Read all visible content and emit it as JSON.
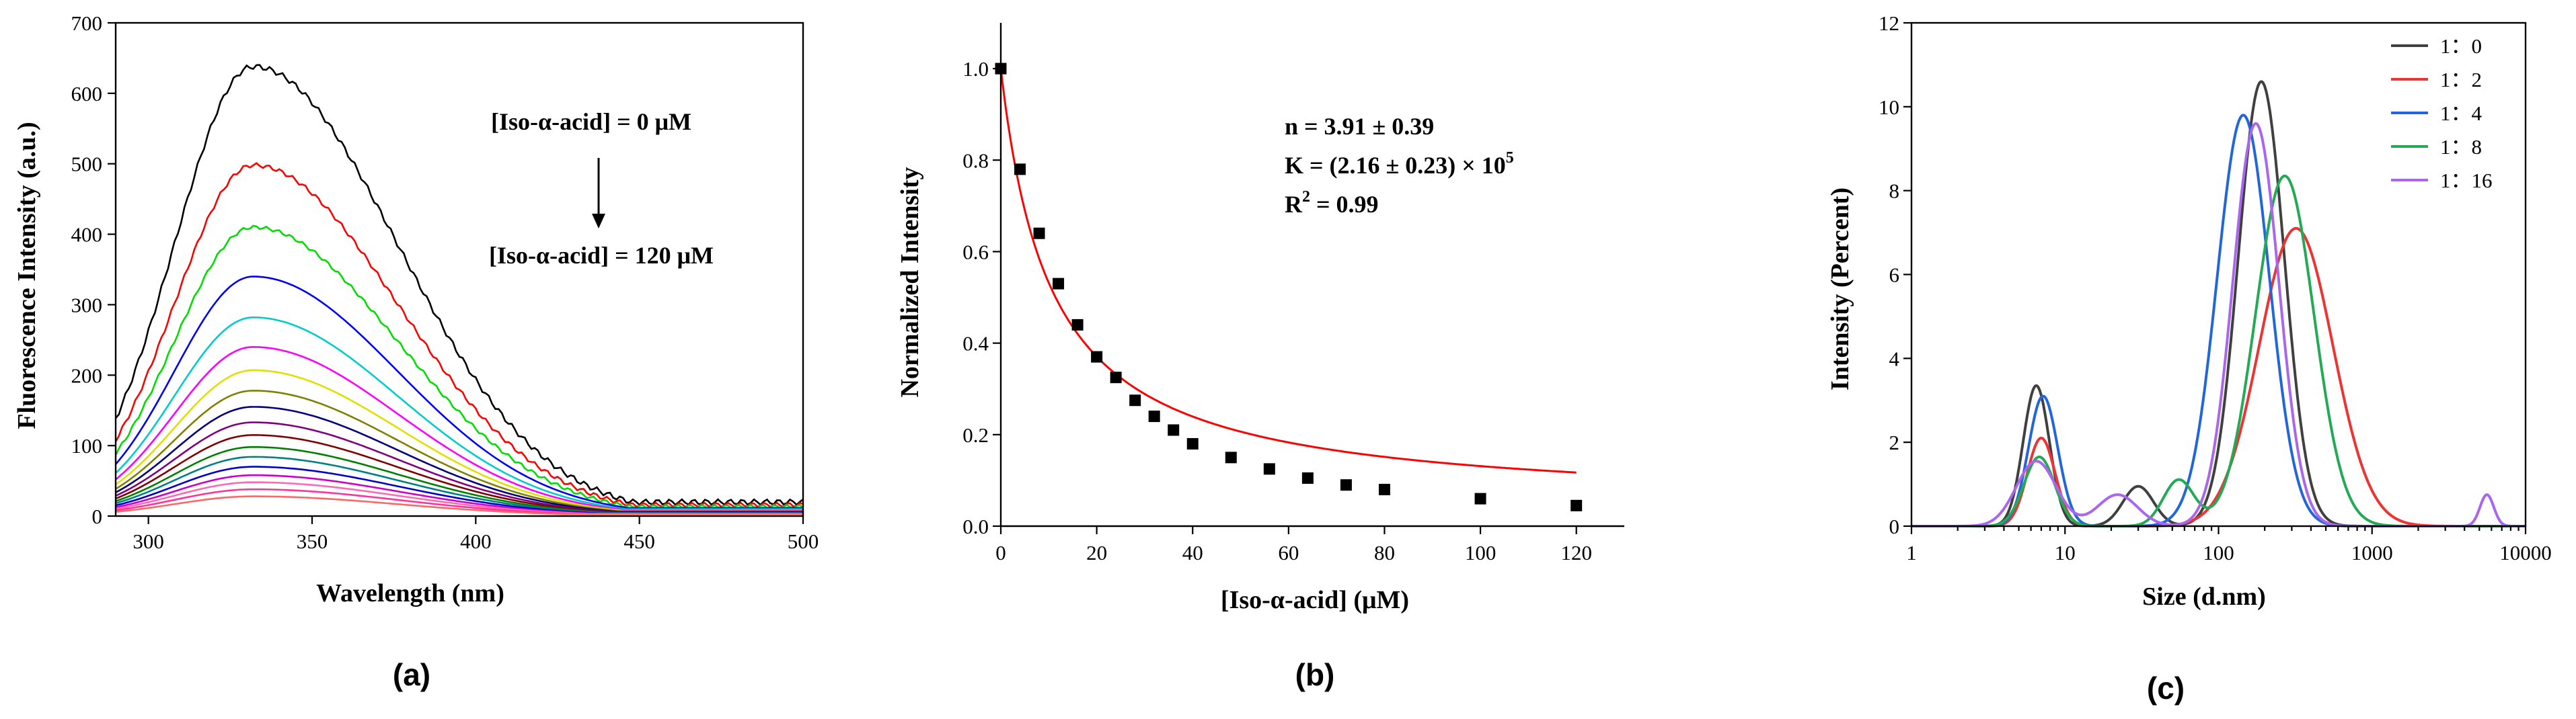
{
  "chart_data": [
    {
      "panel": "(a)",
      "type": "line",
      "title": "",
      "xlabel": "Wavelength (nm)",
      "ylabel": "Fluorescence Intensity (a.u.)",
      "xlim": [
        290,
        500
      ],
      "ylim": [
        0,
        700
      ],
      "x_ticks": [
        300,
        350,
        400,
        450,
        500
      ],
      "y_ticks": [
        0,
        100,
        200,
        300,
        400,
        500,
        600,
        700
      ],
      "annotation_top": "[Iso-α-acid] = 0 μM",
      "annotation_bottom": "[Iso-α-acid] = 120 μM",
      "arrow": "down",
      "peak_wavelength": 332,
      "series": [
        {
          "peak": 638,
          "color": "#000000"
        },
        {
          "peak": 498,
          "color": "#ff0000"
        },
        {
          "peak": 410,
          "color": "#00dd00"
        },
        {
          "peak": 340,
          "color": "#0000ff"
        },
        {
          "peak": 282,
          "color": "#00cccc"
        },
        {
          "peak": 240,
          "color": "#ff00ff"
        },
        {
          "peak": 207,
          "color": "#e0e000"
        },
        {
          "peak": 178,
          "color": "#808000"
        },
        {
          "peak": 155,
          "color": "#000080"
        },
        {
          "peak": 133,
          "color": "#800080"
        },
        {
          "peak": 115,
          "color": "#800000"
        },
        {
          "peak": 98,
          "color": "#008000"
        },
        {
          "peak": 84,
          "color": "#008080"
        },
        {
          "peak": 70,
          "color": "#0000cc"
        },
        {
          "peak": 58,
          "color": "#cc00cc"
        },
        {
          "peak": 48,
          "color": "#ff69b4"
        },
        {
          "peak": 38,
          "color": "#ff3399"
        },
        {
          "peak": 28,
          "color": "#ff6666"
        }
      ]
    },
    {
      "panel": "(b)",
      "type": "scatter",
      "title": "",
      "xlabel": "[Iso-α-acid] (μM)",
      "ylabel": "Normalized Intensity",
      "xlim": [
        0,
        130
      ],
      "ylim": [
        0,
        1.1
      ],
      "x_ticks": [
        0,
        20,
        40,
        60,
        80,
        100,
        120
      ],
      "y_ticks": [
        0.0,
        0.2,
        0.4,
        0.6,
        0.8,
        1.0
      ],
      "x_tick_labels": [
        "0",
        "20",
        "40",
        "60",
        "80",
        "100",
        "120"
      ],
      "y_tick_labels": [
        "0.0",
        "0.2",
        "0.4",
        "0.6",
        "0.8",
        "1.0"
      ],
      "points": [
        {
          "x": 0,
          "y": 1.0
        },
        {
          "x": 4,
          "y": 0.78
        },
        {
          "x": 8,
          "y": 0.64
        },
        {
          "x": 12,
          "y": 0.53
        },
        {
          "x": 16,
          "y": 0.44
        },
        {
          "x": 20,
          "y": 0.37
        },
        {
          "x": 24,
          "y": 0.325
        },
        {
          "x": 28,
          "y": 0.275
        },
        {
          "x": 32,
          "y": 0.24
        },
        {
          "x": 36,
          "y": 0.21
        },
        {
          "x": 40,
          "y": 0.18
        },
        {
          "x": 48,
          "y": 0.15
        },
        {
          "x": 56,
          "y": 0.125
        },
        {
          "x": 64,
          "y": 0.105
        },
        {
          "x": 72,
          "y": 0.09
        },
        {
          "x": 80,
          "y": 0.08
        },
        {
          "x": 100,
          "y": 0.06
        },
        {
          "x": 120,
          "y": 0.045
        }
      ],
      "fit_color": "#ff0000",
      "annotation_lines": [
        "n = 3.91 ± 0.39",
        "K = (2.16 ± 0.23) × 10",
        "R",
        " = 0.99"
      ],
      "annotation_sup": [
        "5",
        "2"
      ]
    },
    {
      "panel": "(c)",
      "type": "line",
      "title": "",
      "xlabel": "Size (d.nm)",
      "ylabel": "Intensity (Percent)",
      "xscale": "log",
      "xlim": [
        1,
        10000
      ],
      "ylim": [
        0,
        12
      ],
      "x_ticks": [
        1,
        10,
        100,
        1000,
        10000
      ],
      "x_tick_labels": [
        "1",
        "10",
        "100",
        "1000",
        "10000"
      ],
      "y_ticks": [
        0,
        2,
        4,
        6,
        8,
        10,
        12
      ],
      "legend_position": "top-right",
      "series": [
        {
          "name": "1：0",
          "color": "#404040",
          "peaks": [
            {
              "c": 6.5,
              "h": 3.35,
              "w": 0.085
            },
            {
              "c": 30,
              "h": 0.95,
              "w": 0.1
            },
            {
              "c": 190,
              "h": 10.6,
              "w": 0.15
            }
          ]
        },
        {
          "name": "1：2",
          "color": "#ee3333",
          "peaks": [
            {
              "c": 7,
              "h": 2.1,
              "w": 0.09
            },
            {
              "c": 320,
              "h": 7.1,
              "w": 0.24
            }
          ]
        },
        {
          "name": "1：4",
          "color": "#2266dd",
          "peaks": [
            {
              "c": 7.2,
              "h": 3.1,
              "w": 0.095
            },
            {
              "c": 145,
              "h": 9.8,
              "w": 0.17
            }
          ]
        },
        {
          "name": "1：8",
          "color": "#22aa55",
          "peaks": [
            {
              "c": 6.8,
              "h": 1.65,
              "w": 0.1
            },
            {
              "c": 55,
              "h": 1.1,
              "w": 0.1
            },
            {
              "c": 270,
              "h": 8.35,
              "w": 0.19
            }
          ]
        },
        {
          "name": "1：16",
          "color": "#aa66ee",
          "peaks": [
            {
              "c": 6.5,
              "h": 1.55,
              "w": 0.13
            },
            {
              "c": 22,
              "h": 0.75,
              "w": 0.13
            },
            {
              "c": 175,
              "h": 9.6,
              "w": 0.15
            },
            {
              "c": 5600,
              "h": 0.75,
              "w": 0.045
            }
          ]
        }
      ]
    }
  ]
}
